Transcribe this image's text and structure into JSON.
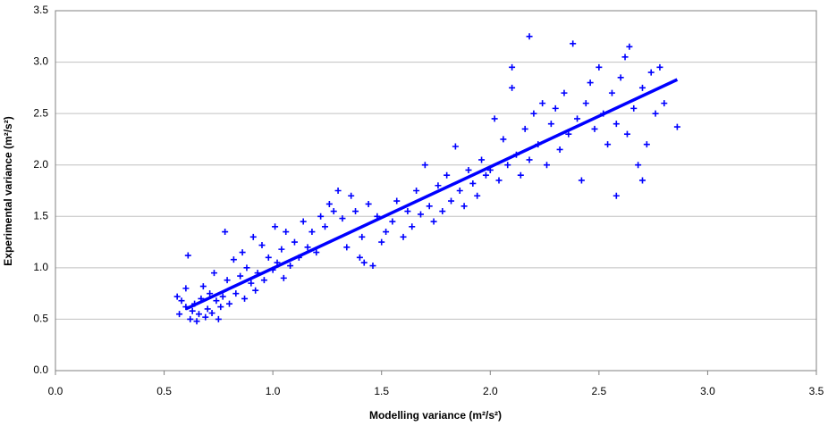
{
  "chart_data": {
    "type": "scatter",
    "xlabel": "Modelling variance (m²/s²)",
    "ylabel": "Experimental variance (m²/s²)",
    "xlim": [
      0,
      3.5
    ],
    "ylim": [
      0,
      3.5
    ],
    "xticks": [
      {
        "value": 0,
        "label": "0.0"
      },
      0.5,
      {
        "value": 1,
        "label": "1.0"
      },
      1.5,
      {
        "value": 2,
        "label": "2.0"
      },
      2.5,
      {
        "value": 3,
        "label": "3.0"
      },
      3.5
    ],
    "yticks": [
      {
        "value": 0,
        "label": "0.0"
      },
      0.5,
      {
        "value": 1,
        "label": "1.0"
      },
      1.5,
      {
        "value": 2,
        "label": "2.0"
      },
      2.5,
      {
        "value": 3,
        "label": "3.0"
      },
      3.5
    ],
    "grid": true,
    "series": [
      {
        "color": "#0000ff",
        "x": [
          0.56,
          0.57,
          0.58,
          0.6,
          0.61,
          0.6,
          0.62,
          0.63,
          0.64,
          0.65,
          0.66,
          0.67,
          0.68,
          0.69,
          0.7,
          0.71,
          0.72,
          0.73,
          0.74,
          0.75,
          0.76,
          0.77,
          0.78,
          0.79,
          0.8,
          0.82,
          0.83,
          0.85,
          0.86,
          0.87,
          0.88,
          0.9,
          0.91,
          0.92,
          0.93,
          0.95,
          0.96,
          0.98,
          1.0,
          1.01,
          1.02,
          1.04,
          1.05,
          1.06,
          1.08,
          1.1,
          1.12,
          1.14,
          1.16,
          1.18,
          1.2,
          1.22,
          1.24,
          1.26,
          1.28,
          1.3,
          1.32,
          1.34,
          1.36,
          1.38,
          1.4,
          1.41,
          1.42,
          1.44,
          1.46,
          1.48,
          1.5,
          1.52,
          1.55,
          1.57,
          1.6,
          1.62,
          1.64,
          1.66,
          1.68,
          1.7,
          1.72,
          1.74,
          1.76,
          1.78,
          1.8,
          1.82,
          1.84,
          1.86,
          1.88,
          1.9,
          1.92,
          1.94,
          1.96,
          1.98,
          2.0,
          2.02,
          2.04,
          2.06,
          2.08,
          2.1,
          2.1,
          2.12,
          2.14,
          2.16,
          2.18,
          2.18,
          2.2,
          2.22,
          2.24,
          2.26,
          2.28,
          2.3,
          2.32,
          2.34,
          2.36,
          2.38,
          2.4,
          2.42,
          2.44,
          2.46,
          2.48,
          2.5,
          2.52,
          2.54,
          2.56,
          2.58,
          2.6,
          2.62,
          2.63,
          2.64,
          2.66,
          2.68,
          2.7,
          2.72,
          2.74,
          2.76,
          2.78,
          2.8,
          2.86,
          2.58,
          2.7
        ],
        "values": [
          0.72,
          0.55,
          0.68,
          0.62,
          1.12,
          0.8,
          0.5,
          0.58,
          0.65,
          0.48,
          0.55,
          0.7,
          0.82,
          0.52,
          0.6,
          0.75,
          0.56,
          0.95,
          0.68,
          0.5,
          0.62,
          0.72,
          1.35,
          0.88,
          0.65,
          1.08,
          0.75,
          0.92,
          1.15,
          0.7,
          1.0,
          0.85,
          1.3,
          0.78,
          0.95,
          1.22,
          0.88,
          1.1,
          0.98,
          1.4,
          1.05,
          1.18,
          0.9,
          1.35,
          1.02,
          1.25,
          1.1,
          1.45,
          1.2,
          1.35,
          1.15,
          1.5,
          1.4,
          1.62,
          1.55,
          1.75,
          1.48,
          1.2,
          1.7,
          1.55,
          1.1,
          1.3,
          1.05,
          1.62,
          1.02,
          1.5,
          1.25,
          1.35,
          1.45,
          1.65,
          1.3,
          1.55,
          1.4,
          1.75,
          1.52,
          2.0,
          1.6,
          1.45,
          1.8,
          1.55,
          1.9,
          1.65,
          2.18,
          1.75,
          1.6,
          1.95,
          1.82,
          1.7,
          2.05,
          1.9,
          1.95,
          2.45,
          1.85,
          2.25,
          2.0,
          2.75,
          2.95,
          2.1,
          1.9,
          2.35,
          2.05,
          3.25,
          2.5,
          2.2,
          2.6,
          2.0,
          2.4,
          2.55,
          2.15,
          2.7,
          2.3,
          3.18,
          2.45,
          1.85,
          2.6,
          2.8,
          2.35,
          2.95,
          2.5,
          2.2,
          2.7,
          2.4,
          2.85,
          3.05,
          2.3,
          3.15,
          2.55,
          2.0,
          2.75,
          2.2,
          2.9,
          2.5,
          2.95,
          2.6,
          2.37,
          1.7,
          1.85
        ]
      }
    ],
    "trendline": {
      "color": "#0000ff",
      "x": [
        0.6,
        2.86
      ],
      "values": [
        0.6,
        2.83
      ]
    }
  }
}
